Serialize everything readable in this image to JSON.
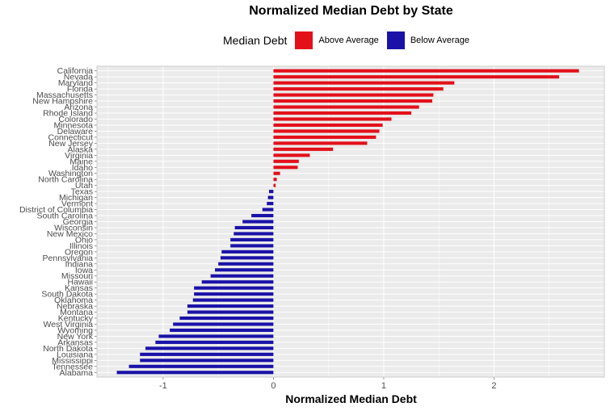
{
  "chart_data": {
    "type": "bar",
    "orientation": "horizontal",
    "title": "Normalized Median Debt by State",
    "xlabel": "Normalized Median Debt",
    "ylabel": "",
    "xlim": [
      -1.6,
      3.0
    ],
    "x_ticks": [
      "-1",
      "0",
      "1",
      "2"
    ],
    "x_tick_values": [
      -1,
      0,
      1,
      2
    ],
    "grid": true,
    "legend": {
      "title": "Median Debt",
      "position": "top",
      "items": [
        {
          "label": "Above Average",
          "color": "#e3101a"
        },
        {
          "label": "Below Average",
          "color": "#1a12a8"
        }
      ]
    },
    "categories": [
      "California",
      "Nevada",
      "Maryland",
      "Florida",
      "Massachusetts",
      "New Hampshire",
      "Arizona",
      "Rhode Island",
      "Colorado",
      "Minnesota",
      "Delaware",
      "Connecticut",
      "New Jersey",
      "Alaska",
      "Virginia",
      "Maine",
      "Idaho",
      "Washington",
      "North Carolina",
      "Utah",
      "Texas",
      "Michigan",
      "Vermont",
      "District of Columbia",
      "South Carolina",
      "Georgia",
      "Wisconsin",
      "New Mexico",
      "Ohio",
      "Illinois",
      "Oregon",
      "Pennsylvania",
      "Indiana",
      "Iowa",
      "Missouri",
      "Hawaii",
      "Kansas",
      "South Dakota",
      "Oklahoma",
      "Nebraska",
      "Montana",
      "Kentucky",
      "West Virginia",
      "Wyoming",
      "New York",
      "Arkansas",
      "North Dakota",
      "Louisiana",
      "Mississippi",
      "Tennessee",
      "Alabama"
    ],
    "values": [
      2.77,
      2.59,
      1.64,
      1.54,
      1.45,
      1.44,
      1.32,
      1.25,
      1.07,
      0.99,
      0.96,
      0.93,
      0.85,
      0.54,
      0.33,
      0.23,
      0.22,
      0.06,
      0.03,
      0.02,
      -0.04,
      -0.05,
      -0.06,
      -0.1,
      -0.2,
      -0.28,
      -0.35,
      -0.36,
      -0.39,
      -0.39,
      -0.47,
      -0.48,
      -0.5,
      -0.53,
      -0.57,
      -0.65,
      -0.72,
      -0.72,
      -0.73,
      -0.78,
      -0.78,
      -0.85,
      -0.91,
      -0.94,
      -1.04,
      -1.07,
      -1.16,
      -1.21,
      -1.21,
      -1.31,
      -1.42
    ]
  }
}
